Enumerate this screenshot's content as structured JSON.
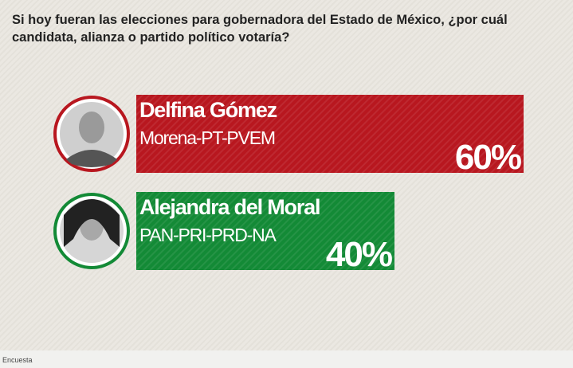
{
  "chart_data": {
    "type": "bar",
    "title": "Si hoy fueran las elecciones para gobernadora del Estado de México, ¿por cuál candidata, alianza o partido político votaría?",
    "categories": [
      "Delfina Gómez",
      "Alejandra del Moral"
    ],
    "parties": [
      "Morena-PT-PVEM",
      "PAN-PRI-PRD-NA"
    ],
    "values": [
      60,
      40
    ],
    "value_labels": [
      "60%",
      "40%"
    ],
    "colors": [
      "#b8171f",
      "#138a36"
    ]
  },
  "footer": {
    "text": "Encuesta"
  }
}
